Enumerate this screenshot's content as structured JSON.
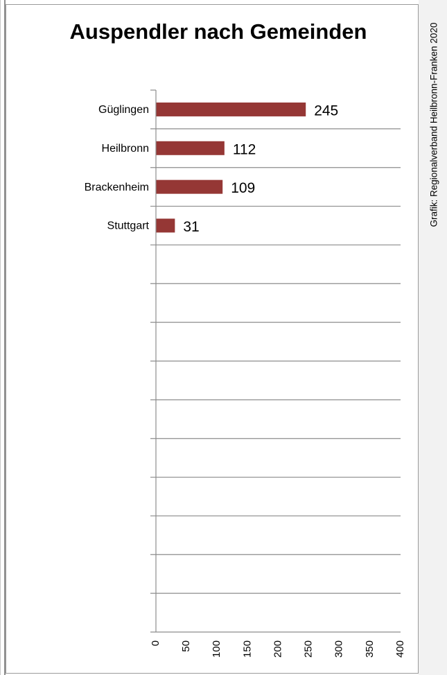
{
  "chart_data": {
    "type": "bar",
    "orientation": "horizontal",
    "title": "Auspendler nach Gemeinden",
    "credit": "Grafik: Regionalverband Heilbronn-Franken 2020",
    "categories": [
      "Güglingen",
      "Heilbronn",
      "Brackenheim",
      "Stuttgart"
    ],
    "values": [
      245,
      112,
      109,
      31
    ],
    "xlim": [
      0,
      400
    ],
    "x_ticks": [
      0,
      50,
      100,
      150,
      200,
      250,
      300,
      350,
      400
    ],
    "category_slots": 14,
    "grid": true,
    "bar_color": "#953735",
    "grid_color": "#8c8c8c"
  }
}
